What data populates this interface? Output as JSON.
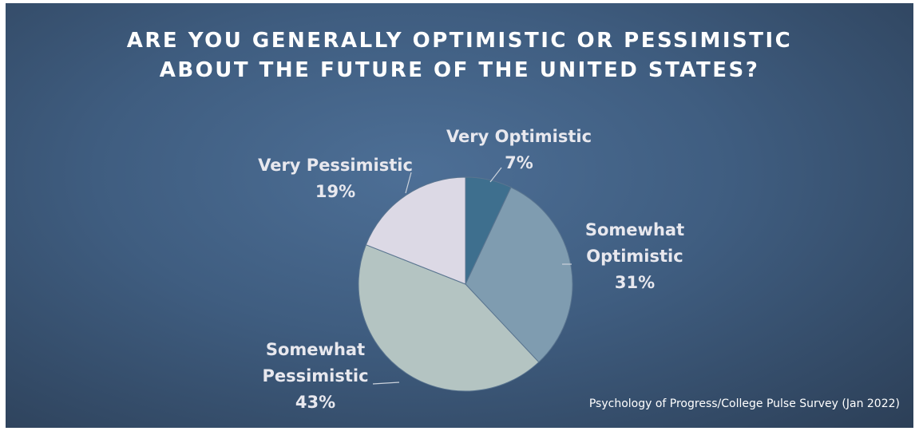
{
  "chart_data": {
    "type": "pie",
    "title": [
      "ARE YOU GENERALLY OPTIMISTIC OR PESSIMISTIC",
      "ABOUT THE FUTURE OF THE UNITED STATES?"
    ],
    "categories": [
      "Very Optimistic",
      "Somewhat Optimistic",
      "Somewhat Pessimistic",
      "Very Pessimistic"
    ],
    "values": [
      7,
      31,
      43,
      19
    ],
    "value_labels": [
      "7%",
      "31%",
      "43%",
      "19%"
    ],
    "colors": [
      "#3e6f8e",
      "#7f9cb0",
      "#b4c4c2",
      "#dcd9e5"
    ],
    "source": "Psychology of Progress/College Pulse Survey (Jan 2022)"
  }
}
